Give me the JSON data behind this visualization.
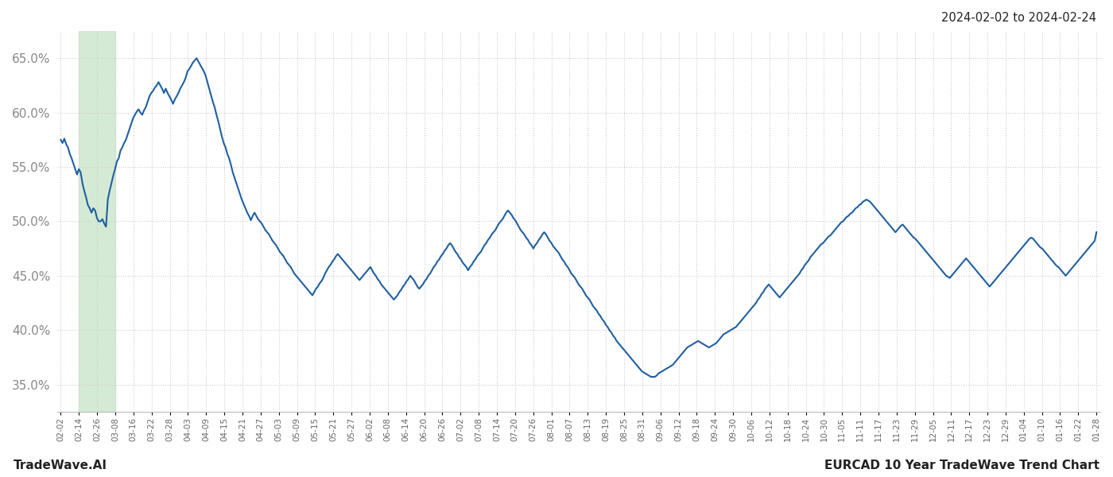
{
  "title_top_right": "2024-02-02 to 2024-02-24",
  "footer_left": "TradeWave.AI",
  "footer_right": "EURCAD 10 Year TradeWave Trend Chart",
  "ytick_values": [
    0.35,
    0.4,
    0.45,
    0.5,
    0.55,
    0.6,
    0.65
  ],
  "ylim": [
    0.325,
    0.675
  ],
  "line_color": "#2060a0",
  "line_width": 1.5,
  "background_color": "#ffffff",
  "grid_color": "#cccccc",
  "grid_style": "dotted",
  "highlight_color": "#d5ead4",
  "xtick_labels": [
    "02-02",
    "02-14",
    "02-26",
    "03-08",
    "03-16",
    "03-22",
    "03-28",
    "04-03",
    "04-09",
    "04-15",
    "04-21",
    "04-27",
    "05-03",
    "05-09",
    "05-15",
    "05-21",
    "05-27",
    "06-02",
    "06-08",
    "06-14",
    "06-20",
    "06-26",
    "07-02",
    "07-08",
    "07-14",
    "07-20",
    "07-26",
    "08-01",
    "08-07",
    "08-13",
    "08-19",
    "08-25",
    "08-31",
    "09-06",
    "09-12",
    "09-18",
    "09-24",
    "09-30",
    "10-06",
    "10-12",
    "10-18",
    "10-24",
    "10-30",
    "11-05",
    "11-11",
    "11-17",
    "11-23",
    "11-29",
    "12-05",
    "12-11",
    "12-17",
    "12-23",
    "12-29",
    "01-04",
    "01-10",
    "01-16",
    "01-22",
    "01-28"
  ],
  "y_values": [
    0.575,
    0.572,
    0.576,
    0.571,
    0.568,
    0.562,
    0.558,
    0.553,
    0.548,
    0.543,
    0.548,
    0.545,
    0.535,
    0.528,
    0.522,
    0.515,
    0.512,
    0.508,
    0.512,
    0.51,
    0.503,
    0.5,
    0.5,
    0.502,
    0.498,
    0.495,
    0.52,
    0.528,
    0.535,
    0.542,
    0.548,
    0.555,
    0.558,
    0.565,
    0.568,
    0.572,
    0.575,
    0.58,
    0.585,
    0.59,
    0.595,
    0.598,
    0.601,
    0.603,
    0.6,
    0.598,
    0.602,
    0.605,
    0.61,
    0.615,
    0.618,
    0.62,
    0.623,
    0.625,
    0.628,
    0.625,
    0.622,
    0.618,
    0.622,
    0.618,
    0.615,
    0.612,
    0.608,
    0.612,
    0.615,
    0.618,
    0.622,
    0.625,
    0.628,
    0.632,
    0.638,
    0.64,
    0.643,
    0.646,
    0.648,
    0.65,
    0.647,
    0.644,
    0.641,
    0.638,
    0.634,
    0.628,
    0.622,
    0.616,
    0.61,
    0.605,
    0.598,
    0.592,
    0.585,
    0.578,
    0.572,
    0.568,
    0.562,
    0.558,
    0.552,
    0.545,
    0.54,
    0.535,
    0.53,
    0.525,
    0.52,
    0.516,
    0.512,
    0.508,
    0.505,
    0.501,
    0.505,
    0.508,
    0.505,
    0.502,
    0.5,
    0.498,
    0.495,
    0.492,
    0.49,
    0.488,
    0.485,
    0.482,
    0.48,
    0.478,
    0.475,
    0.472,
    0.47,
    0.468,
    0.465,
    0.462,
    0.46,
    0.458,
    0.455,
    0.452,
    0.45,
    0.448,
    0.446,
    0.444,
    0.442,
    0.44,
    0.438,
    0.436,
    0.434,
    0.432,
    0.435,
    0.438,
    0.44,
    0.443,
    0.445,
    0.448,
    0.452,
    0.455,
    0.458,
    0.46,
    0.463,
    0.465,
    0.468,
    0.47,
    0.468,
    0.466,
    0.464,
    0.462,
    0.46,
    0.458,
    0.456,
    0.454,
    0.452,
    0.45,
    0.448,
    0.446,
    0.448,
    0.45,
    0.452,
    0.454,
    0.456,
    0.458,
    0.455,
    0.452,
    0.45,
    0.447,
    0.445,
    0.442,
    0.44,
    0.438,
    0.436,
    0.434,
    0.432,
    0.43,
    0.428,
    0.43,
    0.432,
    0.435,
    0.437,
    0.44,
    0.442,
    0.445,
    0.447,
    0.45,
    0.448,
    0.446,
    0.443,
    0.44,
    0.438,
    0.44,
    0.442,
    0.445,
    0.447,
    0.45,
    0.452,
    0.455,
    0.458,
    0.46,
    0.463,
    0.465,
    0.468,
    0.47,
    0.473,
    0.475,
    0.478,
    0.48,
    0.478,
    0.475,
    0.472,
    0.47,
    0.467,
    0.465,
    0.462,
    0.46,
    0.458,
    0.455,
    0.458,
    0.46,
    0.463,
    0.465,
    0.468,
    0.47,
    0.472,
    0.475,
    0.478,
    0.48,
    0.483,
    0.485,
    0.488,
    0.49,
    0.492,
    0.495,
    0.498,
    0.5,
    0.502,
    0.505,
    0.508,
    0.51,
    0.508,
    0.506,
    0.503,
    0.501,
    0.498,
    0.495,
    0.492,
    0.49,
    0.488,
    0.485,
    0.483,
    0.48,
    0.478,
    0.475,
    0.478,
    0.48,
    0.483,
    0.485,
    0.488,
    0.49,
    0.488,
    0.485,
    0.482,
    0.48,
    0.477,
    0.475,
    0.473,
    0.471,
    0.468,
    0.465,
    0.463,
    0.46,
    0.458,
    0.455,
    0.452,
    0.45,
    0.448,
    0.445,
    0.442,
    0.44,
    0.438,
    0.435,
    0.432,
    0.43,
    0.428,
    0.425,
    0.422,
    0.42,
    0.418,
    0.415,
    0.413,
    0.41,
    0.408,
    0.405,
    0.403,
    0.4,
    0.398,
    0.395,
    0.393,
    0.39,
    0.388,
    0.386,
    0.384,
    0.382,
    0.38,
    0.378,
    0.376,
    0.374,
    0.372,
    0.37,
    0.368,
    0.366,
    0.364,
    0.362,
    0.361,
    0.36,
    0.359,
    0.358,
    0.357,
    0.357,
    0.357,
    0.358,
    0.36,
    0.361,
    0.362,
    0.363,
    0.364,
    0.365,
    0.366,
    0.367,
    0.368,
    0.37,
    0.372,
    0.374,
    0.376,
    0.378,
    0.38,
    0.382,
    0.384,
    0.385,
    0.386,
    0.387,
    0.388,
    0.389,
    0.39,
    0.389,
    0.388,
    0.387,
    0.386,
    0.385,
    0.384,
    0.385,
    0.386,
    0.387,
    0.388,
    0.39,
    0.392,
    0.394,
    0.396,
    0.397,
    0.398,
    0.399,
    0.4,
    0.401,
    0.402,
    0.403,
    0.405,
    0.407,
    0.409,
    0.411,
    0.413,
    0.415,
    0.417,
    0.419,
    0.421,
    0.423,
    0.425,
    0.428,
    0.43,
    0.433,
    0.435,
    0.438,
    0.44,
    0.442,
    0.44,
    0.438,
    0.436,
    0.434,
    0.432,
    0.43,
    0.432,
    0.434,
    0.436,
    0.438,
    0.44,
    0.442,
    0.444,
    0.446,
    0.448,
    0.45,
    0.452,
    0.455,
    0.457,
    0.46,
    0.462,
    0.464,
    0.467,
    0.469,
    0.471,
    0.473,
    0.475,
    0.477,
    0.479,
    0.48,
    0.482,
    0.484,
    0.486,
    0.487,
    0.489,
    0.491,
    0.493,
    0.495,
    0.497,
    0.499,
    0.5,
    0.502,
    0.504,
    0.505,
    0.507,
    0.508,
    0.51,
    0.512,
    0.513,
    0.515,
    0.516,
    0.518,
    0.519,
    0.52,
    0.519,
    0.518,
    0.516,
    0.514,
    0.512,
    0.51,
    0.508,
    0.506,
    0.504,
    0.502,
    0.5,
    0.498,
    0.496,
    0.494,
    0.492,
    0.49,
    0.492,
    0.494,
    0.496,
    0.497,
    0.495,
    0.493,
    0.491,
    0.489,
    0.487,
    0.485,
    0.484,
    0.482,
    0.48,
    0.478,
    0.476,
    0.474,
    0.472,
    0.47,
    0.468,
    0.466,
    0.464,
    0.462,
    0.46,
    0.458,
    0.456,
    0.454,
    0.452,
    0.45,
    0.449,
    0.448,
    0.45,
    0.452,
    0.454,
    0.456,
    0.458,
    0.46,
    0.462,
    0.464,
    0.466,
    0.464,
    0.462,
    0.46,
    0.458,
    0.456,
    0.454,
    0.452,
    0.45,
    0.448,
    0.446,
    0.444,
    0.442,
    0.44,
    0.442,
    0.444,
    0.446,
    0.448,
    0.45,
    0.452,
    0.454,
    0.456,
    0.458,
    0.46,
    0.462,
    0.464,
    0.466,
    0.468,
    0.47,
    0.472,
    0.474,
    0.476,
    0.478,
    0.48,
    0.482,
    0.484,
    0.485,
    0.484,
    0.482,
    0.48,
    0.478,
    0.476,
    0.475,
    0.473,
    0.471,
    0.469,
    0.467,
    0.465,
    0.463,
    0.461,
    0.459,
    0.458,
    0.456,
    0.454,
    0.452,
    0.45,
    0.452,
    0.454,
    0.456,
    0.458,
    0.46,
    0.462,
    0.464,
    0.466,
    0.468,
    0.47,
    0.472,
    0.474,
    0.476,
    0.478,
    0.48,
    0.482,
    0.49
  ]
}
